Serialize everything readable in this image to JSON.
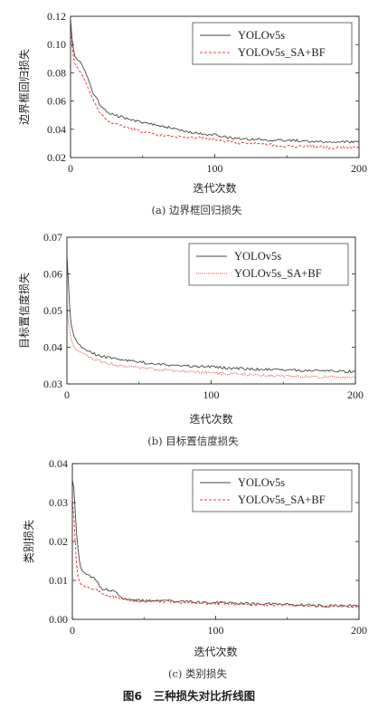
{
  "figure_caption": "图6　三种损失对比折线图",
  "colors": {
    "yolov5s": "#444444",
    "sa_bf": "#e0403a"
  },
  "chart_data": [
    {
      "type": "line",
      "caption": "(a) 边界框回归损失",
      "xlabel": "迭代次数",
      "ylabel": "边界框回归损失",
      "xlim": [
        0,
        200
      ],
      "ylim": [
        0.02,
        0.12
      ],
      "xticks": [
        0,
        100,
        200
      ],
      "yticks": [
        0.02,
        0.04,
        0.06,
        0.08,
        0.1,
        0.12
      ],
      "ytick_labels": [
        "0.02",
        "0.04",
        "0.06",
        "0.08",
        "0.10",
        "0.12"
      ],
      "legend_position": "top-right",
      "series": [
        {
          "name": "YOLOv5s",
          "style": "solid",
          "x": [
            0,
            1,
            2,
            3,
            5,
            8,
            10,
            13,
            15,
            18,
            20,
            25,
            30,
            35,
            40,
            45,
            50,
            55,
            60,
            70,
            80,
            90,
            100,
            110,
            120,
            130,
            140,
            150,
            160,
            170,
            180,
            190,
            200
          ],
          "y": [
            0.118,
            0.105,
            0.097,
            0.092,
            0.089,
            0.086,
            0.081,
            0.074,
            0.067,
            0.062,
            0.058,
            0.053,
            0.05,
            0.049,
            0.047,
            0.046,
            0.045,
            0.044,
            0.043,
            0.041,
            0.038,
            0.037,
            0.036,
            0.034,
            0.033,
            0.033,
            0.032,
            0.032,
            0.032,
            0.031,
            0.031,
            0.031,
            0.031
          ]
        },
        {
          "name": "YOLOv5s_SA+BF",
          "style": "dashed",
          "x": [
            0,
            1,
            2,
            3,
            5,
            8,
            10,
            13,
            15,
            18,
            20,
            25,
            30,
            35,
            40,
            45,
            50,
            55,
            60,
            70,
            80,
            90,
            100,
            110,
            120,
            130,
            140,
            150,
            160,
            170,
            180,
            190,
            200
          ],
          "y": [
            0.112,
            0.1,
            0.092,
            0.087,
            0.083,
            0.079,
            0.074,
            0.068,
            0.062,
            0.056,
            0.052,
            0.047,
            0.044,
            0.042,
            0.041,
            0.04,
            0.038,
            0.037,
            0.036,
            0.035,
            0.034,
            0.034,
            0.033,
            0.031,
            0.03,
            0.03,
            0.029,
            0.028,
            0.028,
            0.028,
            0.027,
            0.027,
            0.027
          ]
        }
      ]
    },
    {
      "type": "line",
      "caption": "(b) 目标置信度损失",
      "xlabel": "迭代次数",
      "ylabel": "目标置信度损失",
      "xlim": [
        0,
        200
      ],
      "ylim": [
        0.03,
        0.07
      ],
      "xticks": [
        0,
        100,
        200
      ],
      "yticks": [
        0.03,
        0.04,
        0.05,
        0.06,
        0.07
      ],
      "ytick_labels": [
        "0.03",
        "0.04",
        "0.05",
        "0.06",
        "0.07"
      ],
      "legend_position": "top-right",
      "series": [
        {
          "name": "YOLOv5s",
          "style": "solid",
          "x": [
            0,
            1,
            2,
            3,
            5,
            8,
            10,
            13,
            15,
            18,
            20,
            25,
            30,
            35,
            40,
            50,
            60,
            70,
            80,
            90,
            100,
            110,
            120,
            130,
            140,
            150,
            160,
            170,
            180,
            190,
            200
          ],
          "y": [
            0.065,
            0.058,
            0.05,
            0.046,
            0.043,
            0.041,
            0.04,
            0.0395,
            0.039,
            0.0385,
            0.038,
            0.0375,
            0.037,
            0.0368,
            0.0365,
            0.036,
            0.0355,
            0.0352,
            0.035,
            0.0348,
            0.0346,
            0.0344,
            0.0342,
            0.034,
            0.0339,
            0.0338,
            0.0337,
            0.0336,
            0.0335,
            0.0334,
            0.0334
          ]
        },
        {
          "name": "YOLOv5s_SA+BF",
          "style": "dotted",
          "x": [
            0,
            1,
            2,
            3,
            5,
            8,
            10,
            13,
            15,
            18,
            20,
            25,
            30,
            35,
            40,
            50,
            60,
            70,
            80,
            90,
            100,
            110,
            120,
            130,
            140,
            150,
            160,
            170,
            180,
            190,
            200
          ],
          "y": [
            0.052,
            0.047,
            0.044,
            0.042,
            0.04,
            0.039,
            0.0385,
            0.038,
            0.0375,
            0.037,
            0.0365,
            0.036,
            0.0355,
            0.035,
            0.0348,
            0.0345,
            0.034,
            0.0337,
            0.0335,
            0.0333,
            0.033,
            0.0328,
            0.0327,
            0.0325,
            0.0323,
            0.0322,
            0.0321,
            0.032,
            0.0319,
            0.0318,
            0.0318
          ]
        }
      ]
    },
    {
      "type": "line",
      "caption": "(c) 类别损失",
      "xlabel": "迭代次数",
      "ylabel": "类别损失",
      "xlim": [
        0,
        200
      ],
      "ylim": [
        0,
        0.04
      ],
      "xticks": [
        0,
        100,
        200
      ],
      "yticks": [
        0,
        0.01,
        0.02,
        0.03,
        0.04
      ],
      "ytick_labels": [
        "0.00",
        "0.01",
        "0.02",
        "0.03",
        "0.04"
      ],
      "legend_position": "top-right",
      "series": [
        {
          "name": "YOLOv5s",
          "style": "solid",
          "x": [
            0,
            1,
            2,
            3,
            4,
            5,
            6,
            8,
            10,
            13,
            15,
            18,
            20,
            25,
            30,
            35,
            40,
            50,
            60,
            70,
            80,
            90,
            100,
            110,
            120,
            130,
            140,
            150,
            160,
            170,
            180,
            190,
            200
          ],
          "y": [
            0.036,
            0.034,
            0.028,
            0.022,
            0.018,
            0.015,
            0.013,
            0.012,
            0.0115,
            0.011,
            0.0105,
            0.0095,
            0.008,
            0.0075,
            0.007,
            0.0055,
            0.005,
            0.0048,
            0.0047,
            0.0046,
            0.0045,
            0.0044,
            0.0043,
            0.0042,
            0.0041,
            0.004,
            0.0039,
            0.0038,
            0.0037,
            0.0036,
            0.0035,
            0.0035,
            0.0034
          ]
        },
        {
          "name": "YOLOv5s_SA+BF",
          "style": "dashed",
          "x": [
            0,
            1,
            2,
            3,
            4,
            5,
            6,
            8,
            10,
            13,
            15,
            18,
            20,
            25,
            30,
            35,
            40,
            50,
            60,
            70,
            80,
            90,
            100,
            110,
            120,
            130,
            140,
            150,
            160,
            170,
            180,
            190,
            200
          ],
          "y": [
            0.03,
            0.027,
            0.02,
            0.014,
            0.011,
            0.0095,
            0.009,
            0.0085,
            0.0082,
            0.008,
            0.0078,
            0.0072,
            0.0068,
            0.0062,
            0.0058,
            0.0052,
            0.0049,
            0.0047,
            0.0046,
            0.0045,
            0.0043,
            0.0042,
            0.0041,
            0.004,
            0.0039,
            0.0038,
            0.0037,
            0.0036,
            0.0035,
            0.0034,
            0.0033,
            0.0033,
            0.0032
          ]
        }
      ]
    }
  ]
}
